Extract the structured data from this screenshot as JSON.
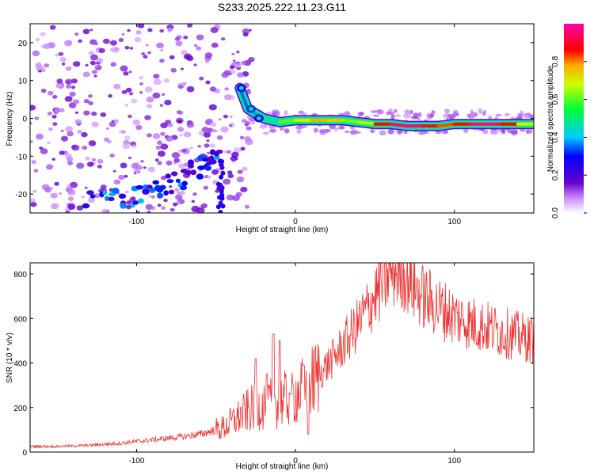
{
  "title": "S233.2025.222.11.23.G11",
  "colors": {
    "snr_line": "#ee3333",
    "frame": "#000000",
    "background": "#ffffff"
  },
  "chart_data": [
    {
      "type": "heatmap",
      "xlabel": "Height of straight line (km)",
      "ylabel": "Frequency (Hz)",
      "xlim": [
        -167,
        150
      ],
      "ylim": [
        -25,
        25
      ],
      "xticks": [
        -100,
        0,
        100
      ],
      "yticks": [
        -20,
        -10,
        0,
        10,
        20
      ],
      "colorbar": {
        "label": "Normalized spectral amplitude",
        "range": [
          0,
          1
        ],
        "ticks": [
          "0.0",
          "0.2",
          "0.4",
          "0.6",
          "0.8"
        ],
        "tick_values": [
          0,
          0.2,
          0.4,
          0.6,
          0.8
        ],
        "colormap": "rainbow (violet = low, red = high)"
      },
      "ridge": [
        {
          "x": -35,
          "y": 8,
          "a": 0.3
        },
        {
          "x": -30,
          "y": 2.5,
          "a": 0.4
        },
        {
          "x": -20,
          "y": 0,
          "a": 0.35
        },
        {
          "x": -10,
          "y": -1,
          "a": 0.55
        },
        {
          "x": 0,
          "y": -0.5,
          "a": 0.65
        },
        {
          "x": 10,
          "y": -0.5,
          "a": 0.75
        },
        {
          "x": 20,
          "y": -0.5,
          "a": 0.8
        },
        {
          "x": 30,
          "y": -0.5,
          "a": 0.7
        },
        {
          "x": 40,
          "y": -1,
          "a": 0.55
        },
        {
          "x": 50,
          "y": -1.5,
          "a": 0.8
        },
        {
          "x": 60,
          "y": -1.5,
          "a": 0.95
        },
        {
          "x": 70,
          "y": -2,
          "a": 1.0
        },
        {
          "x": 80,
          "y": -2,
          "a": 0.95
        },
        {
          "x": 90,
          "y": -2,
          "a": 0.85
        },
        {
          "x": 100,
          "y": -1.5,
          "a": 0.8
        },
        {
          "x": 110,
          "y": -1.5,
          "a": 0.95
        },
        {
          "x": 120,
          "y": -1.5,
          "a": 1.0
        },
        {
          "x": 130,
          "y": -1.5,
          "a": 0.95
        },
        {
          "x": 140,
          "y": -1.5,
          "a": 0.8
        },
        {
          "x": 150,
          "y": -1.5,
          "a": 0.6
        }
      ],
      "band": [
        {
          "x": -130,
          "y": -22
        },
        {
          "x": -100,
          "y": -21
        },
        {
          "x": -80,
          "y": -18
        },
        {
          "x": -60,
          "y": -13
        },
        {
          "x": -48,
          "y": -9
        }
      ]
    },
    {
      "type": "line",
      "xlabel": "Height of straight line (km)",
      "ylabel": "SNR (10 * v/v)",
      "xlim": [
        -167,
        150
      ],
      "ylim": [
        0,
        850
      ],
      "xticks": [
        -100,
        0,
        100
      ],
      "yticks": [
        0,
        200,
        400,
        600,
        800
      ],
      "series": [
        {
          "name": "SNR",
          "x": [
            -167,
            -150,
            -130,
            -110,
            -90,
            -70,
            -60,
            -50,
            -45,
            -40,
            -35,
            -30,
            -25,
            -20,
            -15,
            -10,
            -5,
            0,
            5,
            10,
            15,
            20,
            25,
            30,
            35,
            40,
            45,
            50,
            55,
            60,
            65,
            70,
            75,
            80,
            90,
            100,
            110,
            120,
            130,
            140,
            150
          ],
          "y": [
            25,
            25,
            30,
            40,
            55,
            70,
            80,
            100,
            110,
            135,
            160,
            185,
            205,
            210,
            220,
            230,
            240,
            260,
            280,
            310,
            350,
            390,
            430,
            480,
            530,
            580,
            640,
            700,
            760,
            810,
            820,
            790,
            740,
            700,
            650,
            610,
            580,
            560,
            540,
            520,
            505
          ]
        }
      ],
      "spikes": [
        {
          "x": -25,
          "y": 420
        },
        {
          "x": -18,
          "y": 350
        },
        {
          "x": -14,
          "y": 530
        },
        {
          "x": -10,
          "y": 500
        },
        {
          "x": -3,
          "y": 260
        },
        {
          "x": 5,
          "y": 390
        },
        {
          "x": 8,
          "y": 80
        }
      ]
    }
  ]
}
